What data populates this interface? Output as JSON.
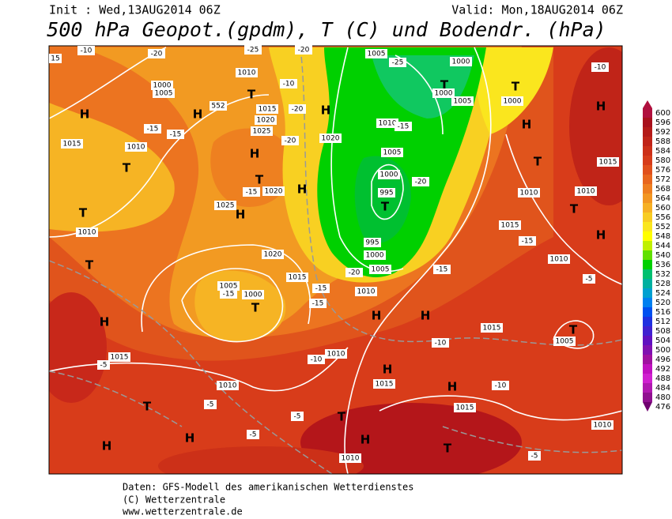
{
  "header": {
    "init": "Init : Wed,13AUG2014 06Z",
    "valid": "Valid: Mon,18AUG2014 06Z",
    "title": "500 hPa Geopot.(gpdm), T (C) und Bodendr. (hPa)"
  },
  "colorbar": {
    "labels": [
      "600",
      "596",
      "592",
      "588",
      "584",
      "580",
      "576",
      "572",
      "568",
      "564",
      "560",
      "556",
      "552",
      "548",
      "544",
      "540",
      "536",
      "532",
      "528",
      "524",
      "520",
      "516",
      "512",
      "508",
      "504",
      "500",
      "496",
      "492",
      "488",
      "484",
      "480",
      "476"
    ],
    "colors": [
      "#b0103e",
      "#a8101c",
      "#b41a18",
      "#c02418",
      "#cc3018",
      "#d63c1a",
      "#e0501c",
      "#e8661e",
      "#ee7e20",
      "#f29622",
      "#f6b024",
      "#f8cc22",
      "#fae61e",
      "#ffff00",
      "#c0f000",
      "#60e000",
      "#00d000",
      "#00c070",
      "#00b0a0",
      "#00a0d0",
      "#0080f0",
      "#0050f0",
      "#2030e0",
      "#4020d0",
      "#6010c0",
      "#8010b0",
      "#a010a0",
      "#c010c0",
      "#d020d0",
      "#b018b0",
      "#901090",
      "#700070"
    ]
  },
  "map_labels": [
    "H",
    "H",
    "H",
    "H",
    "H",
    "H",
    "H",
    "H",
    "H",
    "H",
    "H",
    "H",
    "H",
    "H",
    "H",
    "H",
    "H",
    "T",
    "T",
    "T",
    "T",
    "T",
    "T",
    "T",
    "T",
    "T",
    "T",
    "T",
    "T",
    "T",
    "T",
    "T",
    "1005",
    "1000",
    "1000",
    "1005",
    "1000",
    "1010",
    "1000",
    "1005",
    "552",
    "1015",
    "1020",
    "1025",
    "1010",
    "1005",
    "1000",
    "995",
    "995",
    "1000",
    "1005",
    "1010",
    "1020",
    "1020",
    "1025",
    "1015",
    "1010",
    "1010",
    "1020",
    "1015",
    "1005",
    "1000",
    "1010",
    "1010",
    "1015",
    "1015",
    "1010",
    "1015",
    "1005",
    "1010",
    "1015",
    "1010",
    "1015",
    "1015",
    "1010",
    "1010",
    "-10",
    "-20",
    "-25",
    "-20",
    "-25",
    "-10",
    "-20",
    "-15",
    "-15",
    "-20",
    "-15",
    "-20",
    "-15",
    "-15",
    "-20",
    "-15",
    "-15",
    "-15",
    "-10",
    "-10",
    "-5",
    "-5",
    "-5",
    "-5",
    "-10",
    "-5",
    "-5",
    "-10",
    "15",
    "-15"
  ],
  "footer": [
    "Daten: GFS-Modell des amerikanischen Wetterdienstes",
    "(C) Wetterzentrale",
    "www.wetterzentrale.de"
  ]
}
